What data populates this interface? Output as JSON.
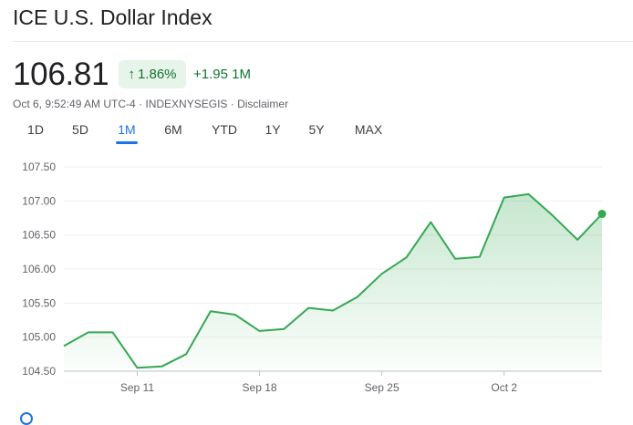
{
  "header": {
    "title": "ICE U.S. Dollar Index"
  },
  "quote": {
    "price": "106.81",
    "change_percent": "1.86%",
    "change_arrow": "↑",
    "change_abs": "+1.95 1M",
    "meta": "Oct 6, 9:52:49 AM UTC-4 · INDEXNYSEGIS · Disclaimer"
  },
  "tabs": [
    {
      "label": "1D"
    },
    {
      "label": "5D"
    },
    {
      "label": "1M",
      "active": true
    },
    {
      "label": "6M"
    },
    {
      "label": "YTD"
    },
    {
      "label": "1Y"
    },
    {
      "label": "5Y"
    },
    {
      "label": "MAX"
    }
  ],
  "colors": {
    "line": "#34a853",
    "positive_text": "#137333",
    "positive_bg": "#e6f4ea",
    "accent": "#1a73e8"
  },
  "chart_data": {
    "type": "area",
    "x": [
      "Sep 6",
      "Sep 7",
      "Sep 8",
      "Sep 11",
      "Sep 12",
      "Sep 13",
      "Sep 14",
      "Sep 15",
      "Sep 18",
      "Sep 19",
      "Sep 20",
      "Sep 21",
      "Sep 22",
      "Sep 25",
      "Sep 26",
      "Sep 27",
      "Sep 28",
      "Sep 29",
      "Oct 2",
      "Oct 3",
      "Oct 4",
      "Oct 5",
      "Oct 6"
    ],
    "values": [
      104.87,
      105.07,
      105.07,
      104.55,
      104.57,
      104.75,
      105.38,
      105.33,
      105.09,
      105.12,
      105.43,
      105.39,
      105.59,
      105.93,
      106.17,
      106.69,
      106.15,
      106.18,
      107.05,
      107.1,
      106.78,
      106.43,
      106.81
    ],
    "x_tick_labels": [
      "Sep 11",
      "Sep 18",
      "Sep 25",
      "Oct 2"
    ],
    "x_tick_values": [
      "Sep 11",
      "Sep 18",
      "Sep 25",
      "Oct 2"
    ],
    "y_ticks": [
      "107.50",
      "107.00",
      "106.50",
      "106.00",
      "105.50",
      "105.00",
      "104.50"
    ],
    "ylim": [
      104.5,
      107.5
    ],
    "grid": true
  }
}
